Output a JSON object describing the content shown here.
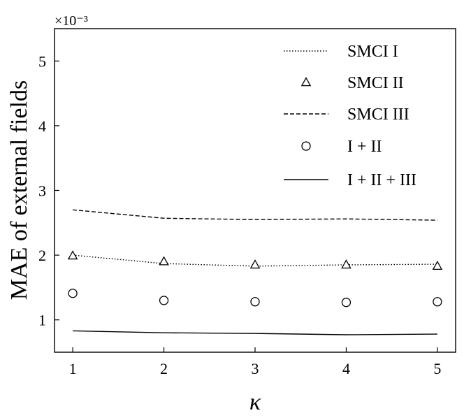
{
  "chart_data": {
    "type": "line",
    "xlabel": "κ",
    "ylabel": "MAE of external fields",
    "y_multiplier": "×10⁻³",
    "x_ticks": [
      "1",
      "2",
      "3",
      "4",
      "5"
    ],
    "y_ticks": [
      "1",
      "2",
      "3",
      "4",
      "5"
    ],
    "xlim": [
      0.8,
      5.2
    ],
    "ylim": [
      0.5,
      5.5
    ],
    "grid": false,
    "legend_position": "top-right",
    "series": [
      {
        "name": "SMCI I",
        "style": "dotted-line",
        "x": [
          1,
          2,
          3,
          4,
          5
        ],
        "y": [
          2.0,
          1.87,
          1.83,
          1.85,
          1.86
        ]
      },
      {
        "name": "SMCI II",
        "style": "triangle-marker",
        "x": [
          1,
          2,
          3,
          4,
          5
        ],
        "y": [
          1.99,
          1.9,
          1.85,
          1.85,
          1.83
        ]
      },
      {
        "name": "SMCI III",
        "style": "dashed-line",
        "x": [
          1,
          2,
          3,
          4,
          5
        ],
        "y": [
          2.7,
          2.57,
          2.55,
          2.56,
          2.54
        ]
      },
      {
        "name": "I + II",
        "style": "circle-marker",
        "x": [
          1,
          2,
          3,
          4,
          5
        ],
        "y": [
          1.41,
          1.3,
          1.28,
          1.27,
          1.28
        ]
      },
      {
        "name": "I + II + III",
        "style": "solid-line",
        "x": [
          1,
          2,
          3,
          4,
          5
        ],
        "y": [
          0.83,
          0.8,
          0.79,
          0.77,
          0.78
        ]
      }
    ]
  }
}
